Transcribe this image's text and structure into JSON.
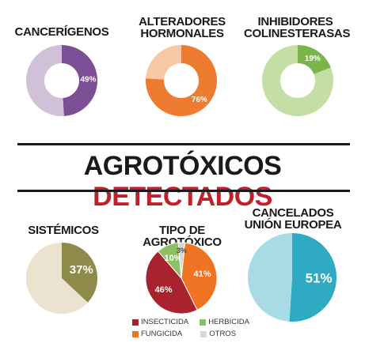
{
  "banner": {
    "part1": "AGROTÓXICOS",
    "part2": "DETECTADOS"
  },
  "chart_data": [
    {
      "type": "pie",
      "title": "CANCERÍGENOS",
      "hole": true,
      "slices": [
        {
          "value": 49,
          "label": "49%",
          "color": "#7b4e96"
        },
        {
          "value": 51,
          "label": "",
          "color": "#d0c1d9"
        }
      ]
    },
    {
      "type": "pie",
      "title": "ALTERADORES HORMONALES",
      "hole": true,
      "slices": [
        {
          "value": 76,
          "label": "76%",
          "color": "#ee7b2f"
        },
        {
          "value": 24,
          "label": "",
          "color": "#f8c7a4"
        }
      ]
    },
    {
      "type": "pie",
      "title": "INHIBIDORES COLINESTERASAS",
      "hole": true,
      "slices": [
        {
          "value": 19,
          "label": "19%",
          "color": "#7cb34a"
        },
        {
          "value": 81,
          "label": "",
          "color": "#c3dfa6"
        }
      ]
    },
    {
      "type": "pie",
      "title": "SISTÉMICOS",
      "hole": false,
      "slices": [
        {
          "value": 37,
          "label": "37%",
          "color": "#8e8a4a"
        },
        {
          "value": 63,
          "label": "",
          "color": "#ece2d0"
        }
      ]
    },
    {
      "type": "pie",
      "title": "TIPO DE AGROTÓXICO",
      "hole": false,
      "slices": [
        {
          "value": 41,
          "label": "41%",
          "color": "#ee7424",
          "legend": "FUNGICIDA"
        },
        {
          "value": 46,
          "label": "46%",
          "color": "#a8232e",
          "legend": "INSECTICIDA"
        },
        {
          "value": 10,
          "label": "10%",
          "color": "#8dc062",
          "legend": "HERBICIDA"
        },
        {
          "value": 3,
          "label": "3%",
          "color": "#d8d8d8",
          "legend": "OTROS"
        }
      ]
    },
    {
      "type": "pie",
      "title": "CANCELADOS UNIÓN EUROPEA",
      "hole": false,
      "slices": [
        {
          "value": 51,
          "label": "51%",
          "color": "#2eaac2"
        },
        {
          "value": 49,
          "label": "",
          "color": "#a9dbe6"
        }
      ]
    }
  ],
  "titles": {
    "c0": "CANCERÍGENOS",
    "c1a": "ALTERADORES",
    "c1b": "HORMONALES",
    "c2a": "INHIBIDORES",
    "c2b": "COLINESTERASAS",
    "c3": "SISTÉMICOS",
    "c4": "TIPO DE AGROTÓXICO",
    "c5a": "CANCELADOS",
    "c5b": "UNIÓN EUROPEA"
  },
  "legend": {
    "insecticida": "INSECTICIDA",
    "herbicida": "HERBICIDA",
    "fungicida": "FUNGICIDA",
    "otros": "OTROS",
    "insecticida_color": "#a8232e",
    "herbicida_color": "#8dc062",
    "fungicida_color": "#ee7424",
    "otros_color": "#d8d8d8"
  }
}
